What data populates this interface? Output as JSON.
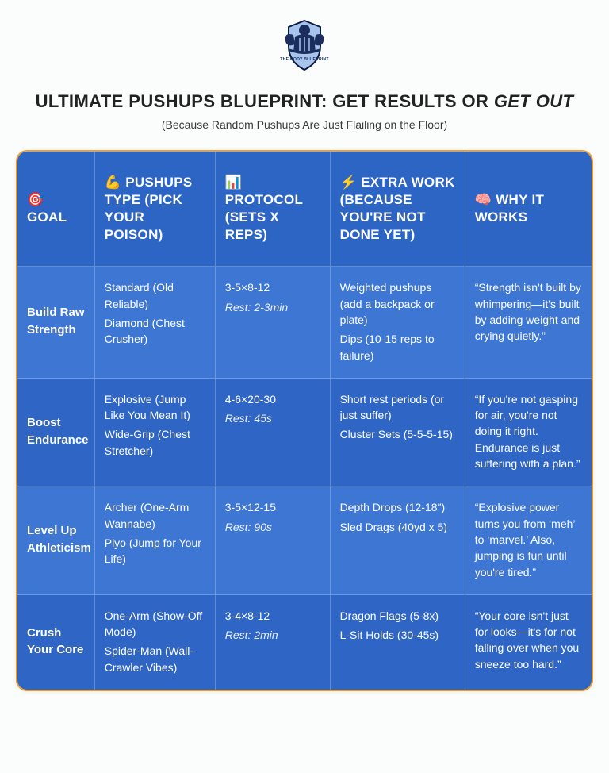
{
  "brand": {
    "name": "THE BODY BLUEPRINT",
    "logo_colors": {
      "navy": "#1b2e5e",
      "light": "#a6c4ec",
      "outline": "#0b1c44"
    }
  },
  "title": {
    "pre": "ULTIMATE PUSHUPS BLUEPRINT: GET RESULTS OR ",
    "italic": "GET OUT"
  },
  "subtitle": "(Because Random Pushups Are Just Flailing on the Floor)",
  "colors": {
    "header_blue": "#2d65c4",
    "row_odd": "#3e76d3",
    "row_even": "#2f66c5",
    "table_border": "#e9a03b",
    "page_bg": "#fbfcfc"
  },
  "table": {
    "columns": [
      {
        "emoji": "🎯",
        "label": "GOAL"
      },
      {
        "emoji": "💪",
        "label": "PUSHUPS TYPE (PICK YOUR POISON)"
      },
      {
        "emoji": "📊",
        "label": "PROTOCOL (SETS X REPS)"
      },
      {
        "emoji": "⚡",
        "label": "EXTRA WORK (BECAUSE YOU'RE NOT DONE YET)"
      },
      {
        "emoji": "🧠",
        "label": "WHY IT WORKS"
      }
    ],
    "rows": [
      {
        "goal": "Build Raw Strength",
        "types": [
          "Standard (Old Reliable)",
          "Diamond (Chest Crusher)"
        ],
        "protocol_sets": "3-5×8-12",
        "protocol_rest": "Rest: 2-3min",
        "extra": [
          "Weighted pushups (add a backpack or plate)",
          "Dips (10-15 reps to failure)"
        ],
        "why": "“Strength isn't built by whimpering—it's built by adding weight and crying quietly.”"
      },
      {
        "goal": "Boost Endurance",
        "types": [
          "Explosive (Jump Like You Mean It)",
          "Wide-Grip (Chest Stretcher)"
        ],
        "protocol_sets": "4-6×20-30",
        "protocol_rest": "Rest: 45s",
        "extra": [
          "Short rest periods (or just suffer)",
          "Cluster Sets (5-5-5-15)"
        ],
        "why": "“If you're not gasping for air, you're not doing it right. Endurance is just suffering with a plan.”"
      },
      {
        "goal": "Level Up Athleticism",
        "types": [
          "Archer (One-Arm Wannabe)",
          "Plyo (Jump for Your Life)"
        ],
        "protocol_sets": "3-5×12-15",
        "protocol_rest": "Rest: 90s",
        "extra": [
          "Depth Drops (12-18″)",
          "Sled Drags (40yd x 5)"
        ],
        "why": "“Explosive power turns you from ‘meh’ to ‘marvel.’ Also, jumping is fun until you're tired.”"
      },
      {
        "goal": "Crush Your Core",
        "types": [
          "One-Arm (Show-Off Mode)",
          "Spider-Man (Wall-Crawler Vibes)"
        ],
        "protocol_sets": "3-4×8-12",
        "protocol_rest": "Rest: 2min",
        "extra": [
          "Dragon Flags (5-8x)",
          "L-Sit Holds (30-45s)"
        ],
        "why": "“Your core isn't just for looks—it's for not falling over when you sneeze too hard.”"
      }
    ]
  }
}
